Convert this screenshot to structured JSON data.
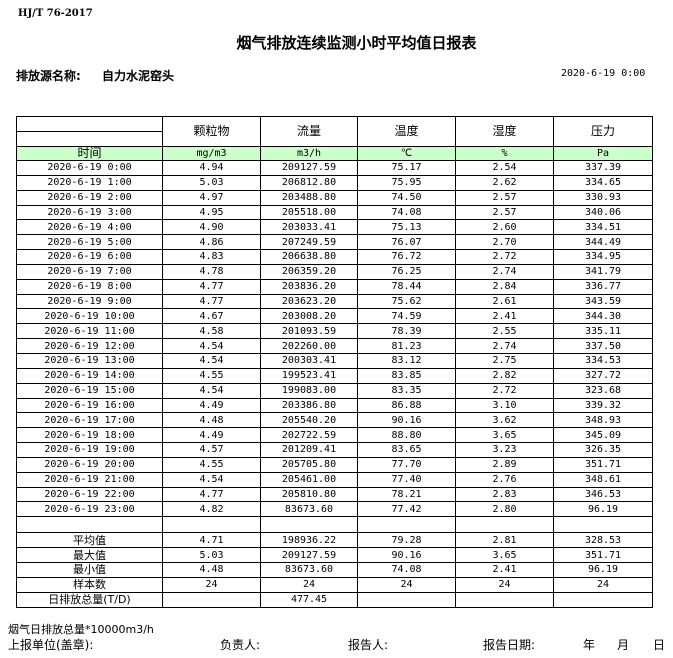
{
  "standard": "HJ/T  76-2017",
  "title": "烟气排放连续监测小时平均值日报表",
  "source_label": "排放源名称:",
  "source_value": "自力水泥窑头",
  "report_datetime": "2020-6-19 0:00",
  "table": {
    "columns": [
      "颗粒物",
      "流量",
      "温度",
      "湿度",
      "压力"
    ],
    "time_header": "时间",
    "units": [
      "mg/m3",
      "m3/h",
      "℃",
      "%",
      "Pa"
    ],
    "rows": [
      [
        "2020-6-19 0:00",
        "4.94",
        "209127.59",
        "75.17",
        "2.54",
        "337.39"
      ],
      [
        "2020-6-19 1:00",
        "5.03",
        "206812.80",
        "75.95",
        "2.62",
        "334.65"
      ],
      [
        "2020-6-19 2:00",
        "4.97",
        "203488.80",
        "74.50",
        "2.57",
        "330.93"
      ],
      [
        "2020-6-19 3:00",
        "4.95",
        "205518.00",
        "74.08",
        "2.57",
        "340.06"
      ],
      [
        "2020-6-19 4:00",
        "4.90",
        "203033.41",
        "75.13",
        "2.60",
        "334.51"
      ],
      [
        "2020-6-19 5:00",
        "4.86",
        "207249.59",
        "76.07",
        "2.70",
        "344.49"
      ],
      [
        "2020-6-19 6:00",
        "4.83",
        "206638.80",
        "76.72",
        "2.72",
        "334.95"
      ],
      [
        "2020-6-19 7:00",
        "4.78",
        "206359.20",
        "76.25",
        "2.74",
        "341.79"
      ],
      [
        "2020-6-19 8:00",
        "4.77",
        "203836.20",
        "78.44",
        "2.84",
        "336.77"
      ],
      [
        "2020-6-19 9:00",
        "4.77",
        "203623.20",
        "75.62",
        "2.61",
        "343.59"
      ],
      [
        "2020-6-19 10:00",
        "4.67",
        "203008.20",
        "74.59",
        "2.41",
        "344.30"
      ],
      [
        "2020-6-19 11:00",
        "4.58",
        "201093.59",
        "78.39",
        "2.55",
        "335.11"
      ],
      [
        "2020-6-19 12:00",
        "4.54",
        "202260.00",
        "81.23",
        "2.74",
        "337.50"
      ],
      [
        "2020-6-19 13:00",
        "4.54",
        "200303.41",
        "83.12",
        "2.75",
        "334.53"
      ],
      [
        "2020-6-19 14:00",
        "4.55",
        "199523.41",
        "83.85",
        "2.82",
        "327.72"
      ],
      [
        "2020-6-19 15:00",
        "4.54",
        "199083.00",
        "83.35",
        "2.72",
        "323.68"
      ],
      [
        "2020-6-19 16:00",
        "4.49",
        "203386.80",
        "86.88",
        "3.10",
        "339.32"
      ],
      [
        "2020-6-19 17:00",
        "4.48",
        "205540.20",
        "90.16",
        "3.62",
        "348.93"
      ],
      [
        "2020-6-19 18:00",
        "4.49",
        "202722.59",
        "88.80",
        "3.65",
        "345.09"
      ],
      [
        "2020-6-19 19:00",
        "4.57",
        "201209.41",
        "83.65",
        "3.23",
        "326.35"
      ],
      [
        "2020-6-19 20:00",
        "4.55",
        "205705.80",
        "77.70",
        "2.89",
        "351.71"
      ],
      [
        "2020-6-19 21:00",
        "4.54",
        "205461.00",
        "77.40",
        "2.76",
        "348.61"
      ],
      [
        "2020-6-19 22:00",
        "4.77",
        "205810.80",
        "78.21",
        "2.83",
        "346.53"
      ],
      [
        "2020-6-19 23:00",
        "4.82",
        "83673.60",
        "77.42",
        "2.80",
        "96.19"
      ]
    ],
    "summary": [
      [
        "平均值",
        "4.71",
        "198936.22",
        "79.28",
        "2.81",
        "328.53"
      ],
      [
        "最大值",
        "5.03",
        "209127.59",
        "90.16",
        "3.65",
        "351.71"
      ],
      [
        "最小值",
        "4.48",
        "83673.60",
        "74.08",
        "2.41",
        "96.19"
      ],
      [
        "样本数",
        "24",
        "24",
        "24",
        "24",
        "24"
      ],
      [
        "日排放总量(T/D)",
        "",
        "477.45",
        "",
        "",
        ""
      ]
    ]
  },
  "footer": {
    "note": "烟气日排放总量*10000m3/h",
    "unit_label": "上报单位(盖章):",
    "responsible_label": "负责人:",
    "reporter_label": "报告人:",
    "report_date_label": "报告日期:",
    "year": "年",
    "month": "月",
    "day": "日"
  },
  "colors": {
    "header_bg": "#ccffcc"
  }
}
